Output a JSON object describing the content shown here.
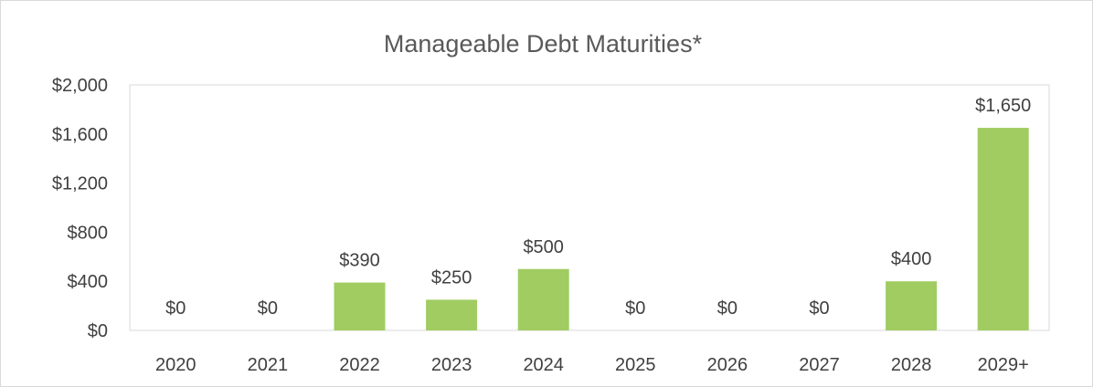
{
  "chart_data": {
    "type": "bar",
    "title": "Manageable Debt Maturities*",
    "xlabel": "",
    "ylabel": "",
    "categories": [
      "2020",
      "2021",
      "2022",
      "2023",
      "2024",
      "2025",
      "2026",
      "2027",
      "2028",
      "2029+"
    ],
    "values": [
      0,
      0,
      390,
      250,
      500,
      0,
      0,
      0,
      400,
      1650
    ],
    "data_labels": [
      "$0",
      "$0",
      "$390",
      "$250",
      "$500",
      "$0",
      "$0",
      "$0",
      "$400",
      "$1,650"
    ],
    "ylim": [
      0,
      2000
    ],
    "yticks": [
      0,
      400,
      800,
      1200,
      1600,
      2000
    ],
    "ytick_labels": [
      "$0",
      "$400",
      "$800",
      "$1,200",
      "$1,600",
      "$2,000"
    ],
    "grid": false,
    "legend": "none",
    "bar_color": "#a0cc62",
    "text_color": "#404040",
    "title_color": "#595959",
    "axis_color": "#d9d9d9"
  }
}
